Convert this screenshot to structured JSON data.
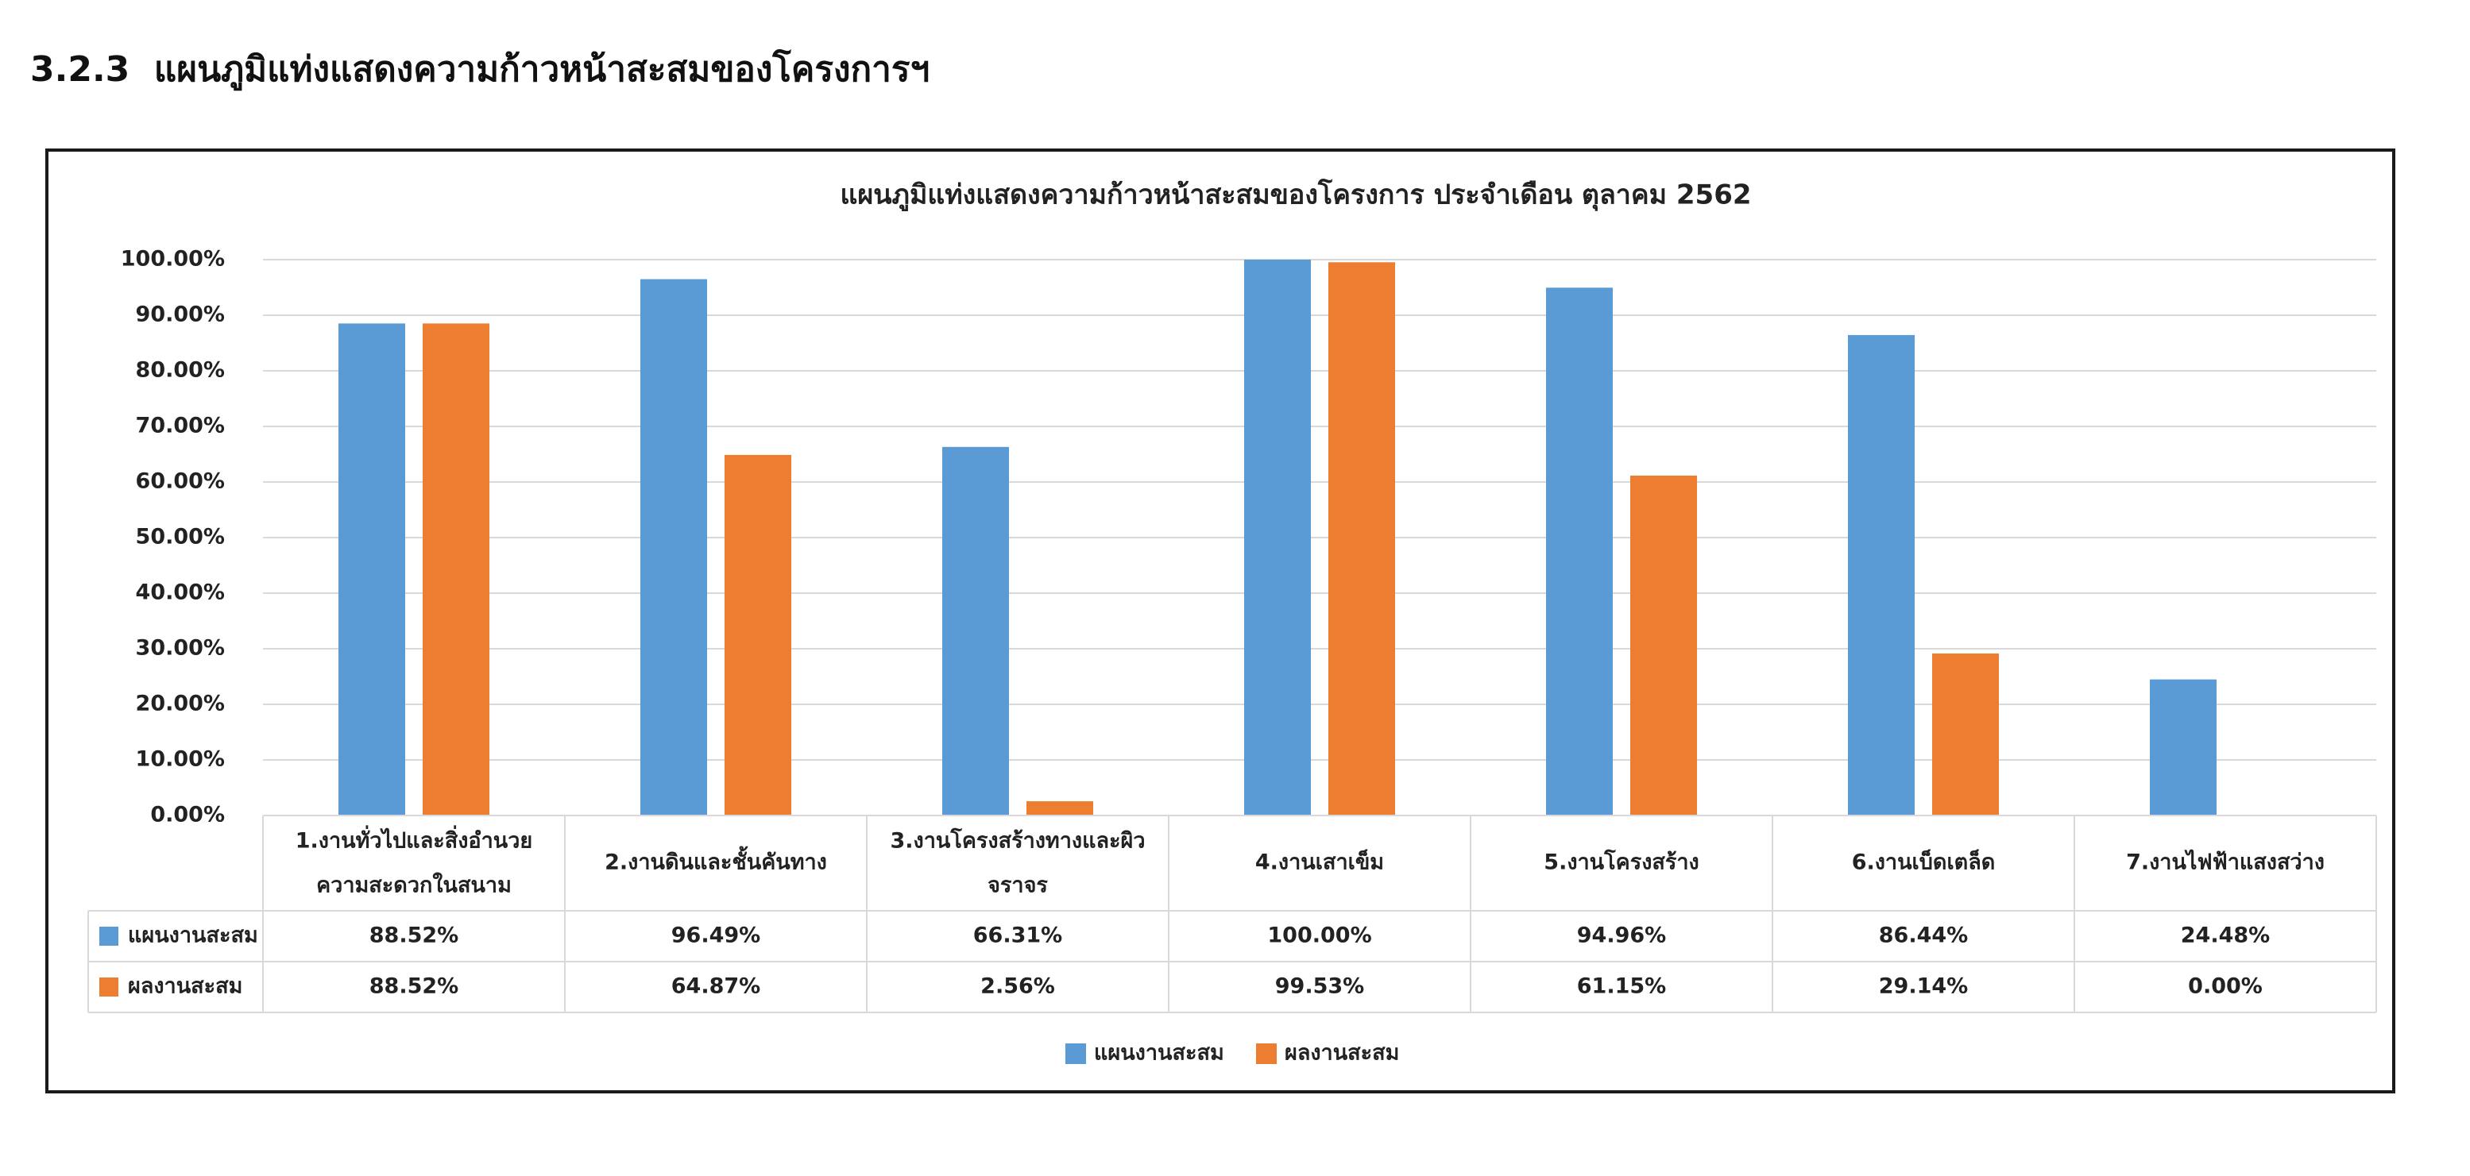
{
  "section": {
    "number": "3.2.3",
    "title": "แผนภูมิแท่งแสดงความก้าวหน้าสะสมของโครงการฯ"
  },
  "colors": {
    "plan": "#5b9bd5",
    "result": "#ed7d31",
    "grid": "#d9d9d9"
  },
  "chart_data": {
    "type": "bar",
    "title": "แผนภูมิแท่งแสดงความก้าวหน้าสะสมของโครงการ ประจำเดือน ตุลาคม 2562",
    "categories": [
      [
        "1.งานทั่วไปและสิ่งอำนวย",
        "ความสะดวกในสนาม"
      ],
      [
        "2.งานดินและชั้นคันทาง"
      ],
      [
        "3.งานโครงสร้างทางและผิว",
        "จราจร"
      ],
      [
        "4.งานเสาเข็ม"
      ],
      [
        "5.งานโครงสร้าง"
      ],
      [
        "6.งานเบ็ดเตล็ด"
      ],
      [
        "7.งานไฟฟ้าแสงสว่าง"
      ]
    ],
    "series": [
      {
        "name": "แผนงานสะสม",
        "values": [
          88.52,
          96.49,
          66.31,
          100.0,
          94.96,
          86.44,
          24.48
        ],
        "labels": [
          "88.52%",
          "96.49%",
          "66.31%",
          "100.00%",
          "94.96%",
          "86.44%",
          "24.48%"
        ]
      },
      {
        "name": "ผลงานสะสม",
        "values": [
          88.52,
          64.87,
          2.56,
          99.53,
          61.15,
          29.14,
          0.0
        ],
        "labels": [
          "88.52%",
          "64.87%",
          "2.56%",
          "99.53%",
          "61.15%",
          "29.14%",
          "0.00%"
        ]
      }
    ],
    "ylim": [
      0,
      100
    ],
    "yticks": [
      "0.00%",
      "10.00%",
      "20.00%",
      "30.00%",
      "40.00%",
      "50.00%",
      "60.00%",
      "70.00%",
      "80.00%",
      "90.00%",
      "100.00%"
    ],
    "grid": true,
    "data_table": true,
    "legend": "bottom-center"
  }
}
